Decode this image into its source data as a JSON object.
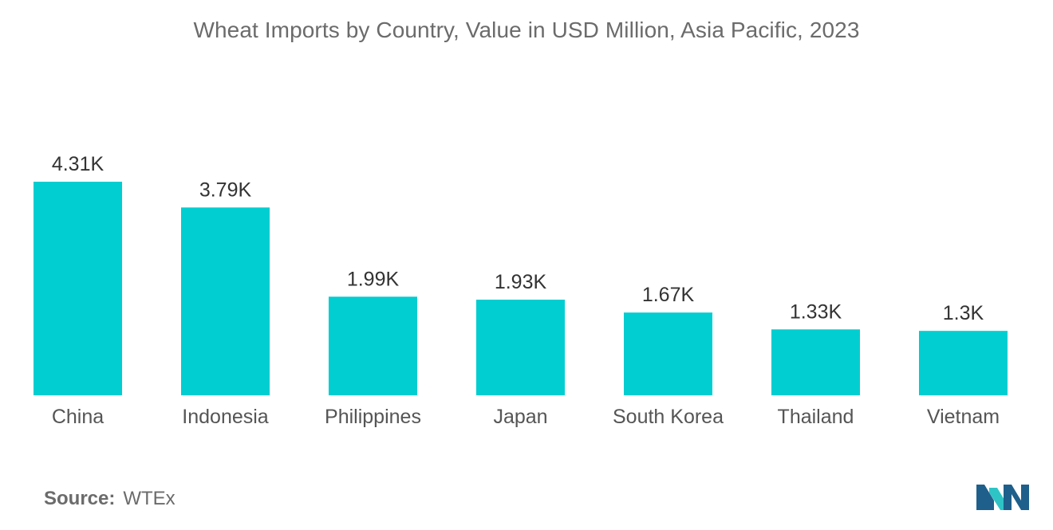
{
  "title": "Wheat Imports by Country, Value in USD Million, Asia Pacific, 2023",
  "source": {
    "label": "Source:",
    "value": "WTEx"
  },
  "colors": {
    "bar": "#00ced1",
    "logo_dark": "#1f5f8b",
    "logo_light": "#2ec4c6"
  },
  "chart_data": {
    "type": "bar",
    "title": "Wheat Imports by Country, Value in USD Million, Asia Pacific, 2023",
    "xlabel": "",
    "ylabel": "",
    "categories": [
      "China",
      "Indonesia",
      "Philippines",
      "Japan",
      "South Korea",
      "Thailand",
      "Vietnam"
    ],
    "values": [
      4310,
      3790,
      1990,
      1930,
      1670,
      1330,
      1300
    ],
    "value_labels": [
      "4.31K",
      "3.79K",
      "1.99K",
      "1.93K",
      "1.67K",
      "1.33K",
      "1.3K"
    ],
    "ylim": [
      0,
      4310
    ],
    "grid": false,
    "legend": "none"
  }
}
